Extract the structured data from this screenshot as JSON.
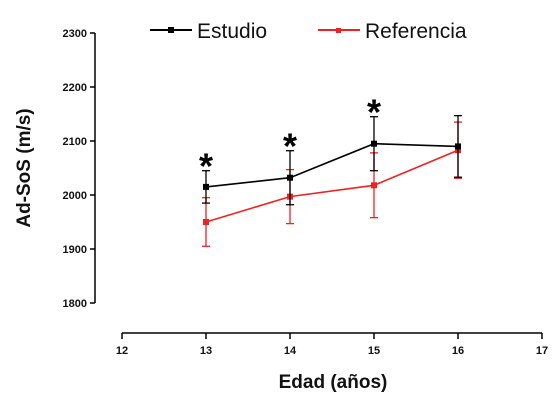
{
  "chart_data": {
    "type": "line",
    "xlabel": "Edad (años)",
    "ylabel": "Ad-SoS (m/s)",
    "xlim": [
      12,
      17
    ],
    "ylim": [
      1800,
      2300
    ],
    "xticks": [
      "12",
      "13",
      "14",
      "15",
      "16",
      "17"
    ],
    "yticks": [
      "1800",
      "1900",
      "2000",
      "2100",
      "2200",
      "2300"
    ],
    "grid": false,
    "legend_position": "top",
    "series": [
      {
        "name": "Estudio",
        "color": "#000000",
        "x": [
          13,
          14,
          15,
          16
        ],
        "y": [
          2015,
          2032,
          2095,
          2090
        ],
        "err": [
          30,
          50,
          50,
          57
        ]
      },
      {
        "name": "Referencia",
        "color": "#ee2222",
        "x": [
          13,
          14,
          15,
          16
        ],
        "y": [
          1950,
          1997,
          2018,
          2083
        ],
        "err": [
          45,
          50,
          60,
          52
        ]
      }
    ],
    "annotations": [
      {
        "x": 13,
        "label": "*"
      },
      {
        "x": 14,
        "label": "*"
      },
      {
        "x": 15,
        "label": "*"
      }
    ]
  }
}
